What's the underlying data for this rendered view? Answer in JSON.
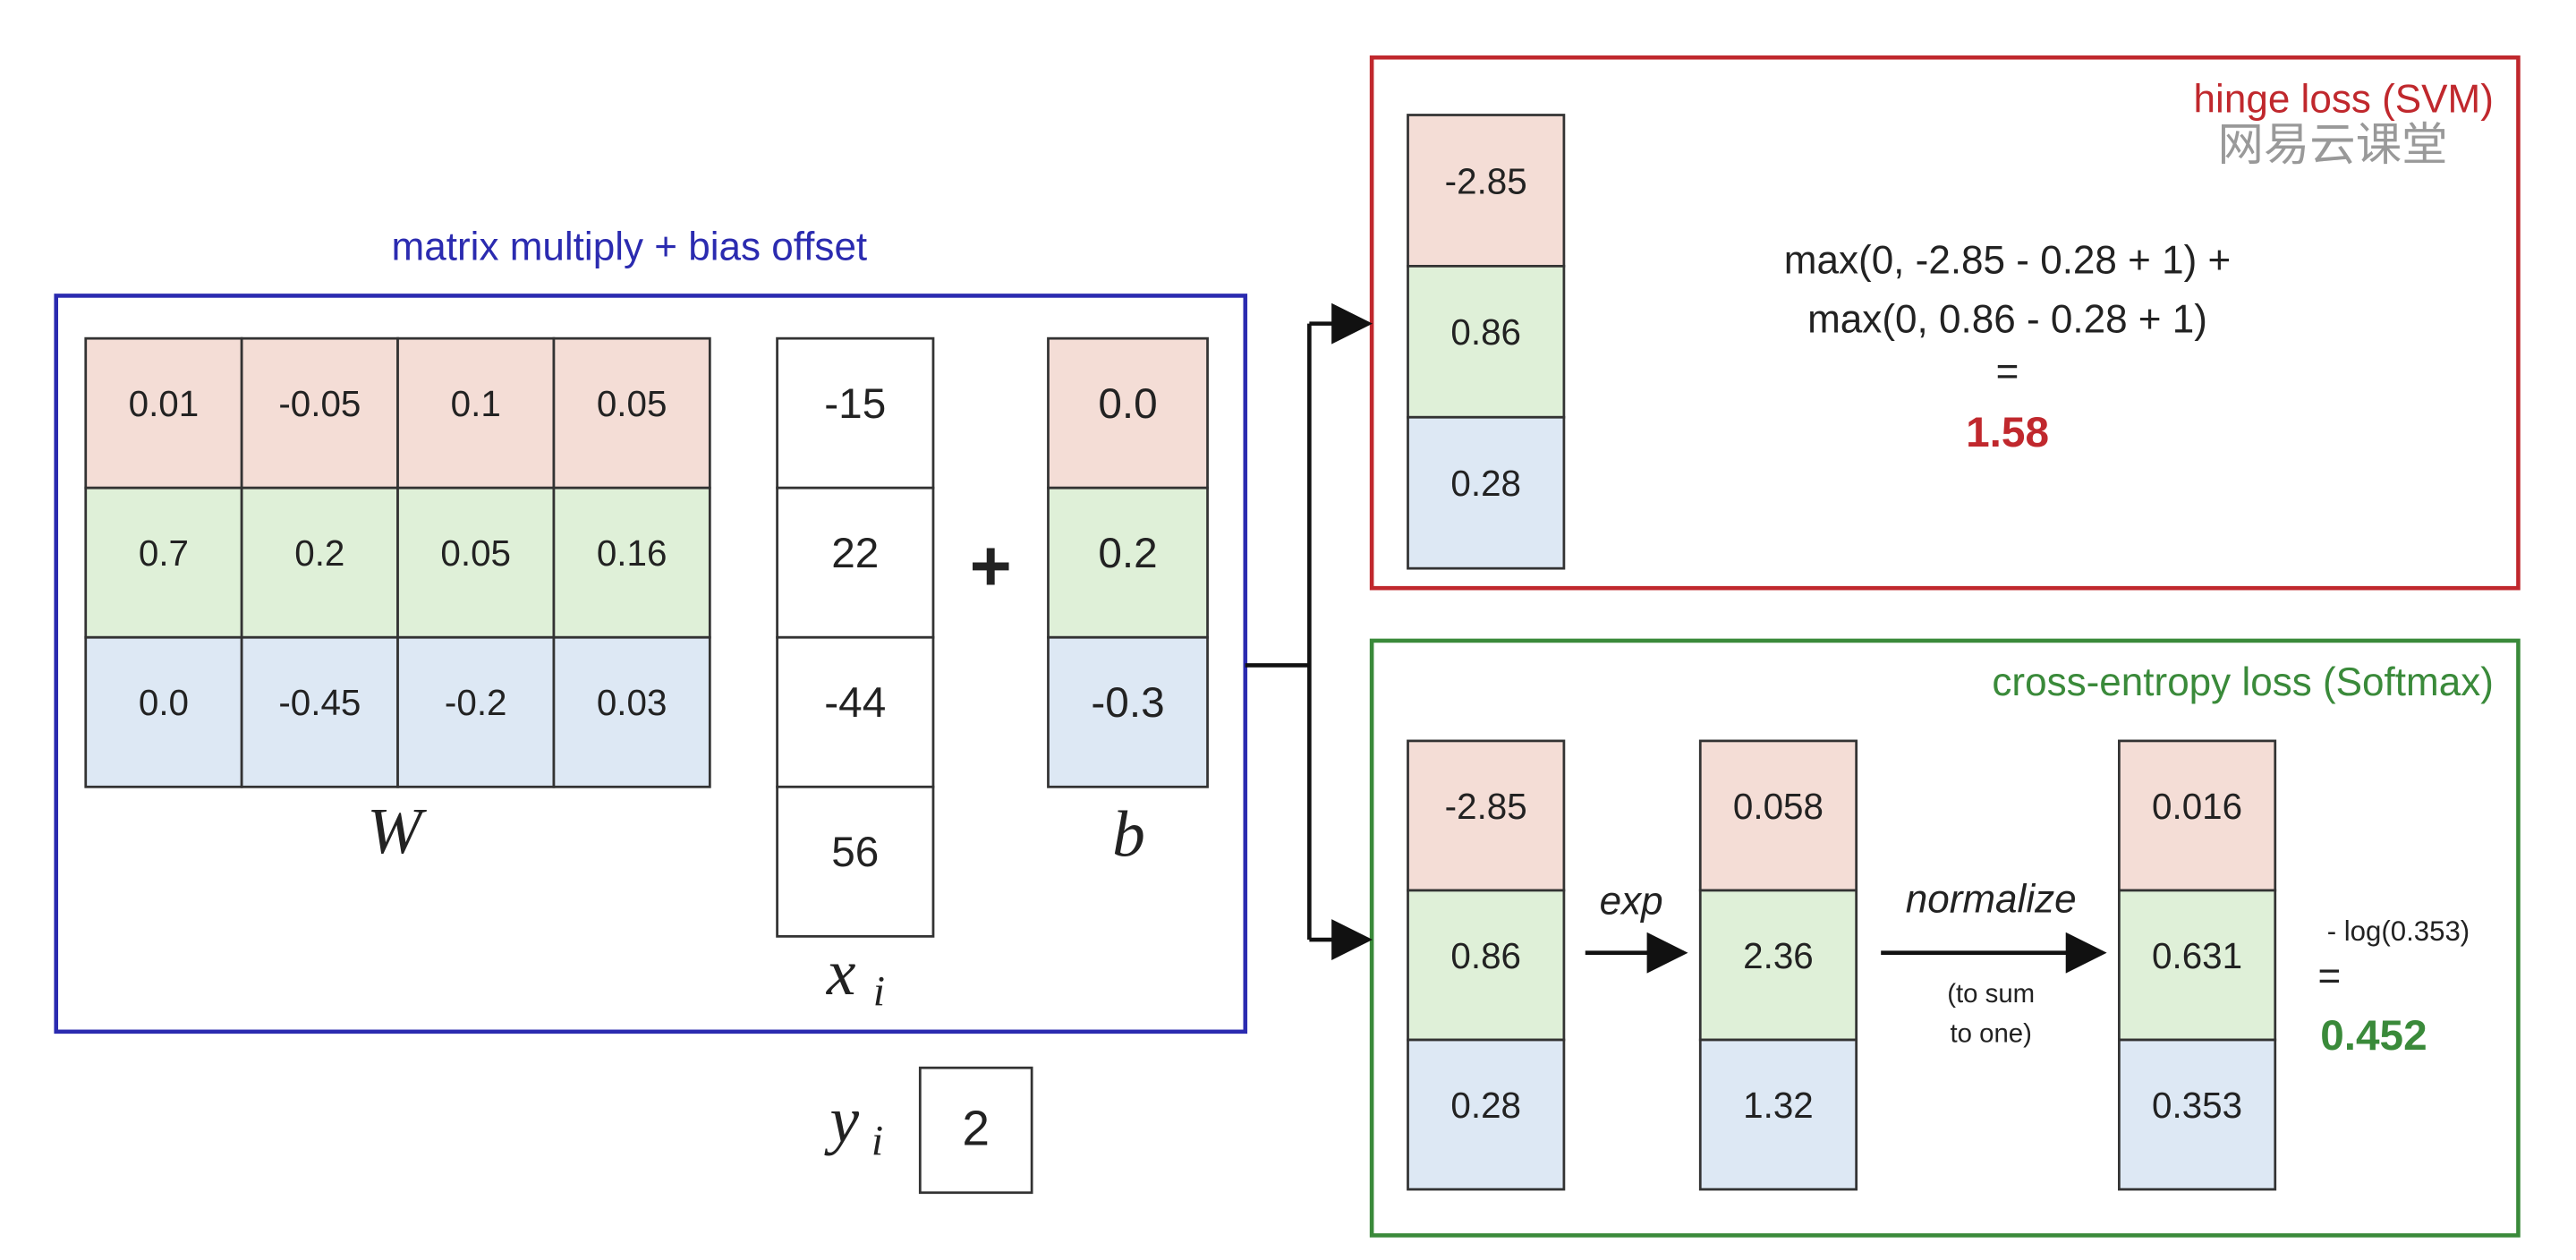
{
  "title": "matrix multiply + bias offset",
  "W": {
    "label": "W",
    "rows": [
      [
        "0.01",
        "-0.05",
        "0.1",
        "0.05"
      ],
      [
        "0.7",
        "0.2",
        "0.05",
        "0.16"
      ],
      [
        "0.0",
        "-0.45",
        "-0.2",
        "0.03"
      ]
    ]
  },
  "x": {
    "label": "x",
    "subscript": "i",
    "values": [
      "-15",
      "22",
      "-44",
      "56"
    ]
  },
  "plus": "+",
  "b": {
    "label": "b",
    "values": [
      "0.0",
      "0.2",
      "-0.3"
    ]
  },
  "y": {
    "label": "y",
    "subscript": "i",
    "value": "2"
  },
  "hinge": {
    "title": "hinge loss (SVM)",
    "scores": [
      "-2.85",
      "0.86",
      "0.28"
    ],
    "formula": [
      "max(0, -2.85 - 0.28 + 1) +",
      "max(0, 0.86 - 0.28 + 1)",
      "="
    ],
    "result": "1.58"
  },
  "softmax": {
    "title": "cross-entropy loss (Softmax)",
    "scores": [
      "-2.85",
      "0.86",
      "0.28"
    ],
    "exp_label": "exp",
    "exp": [
      "0.058",
      "2.36",
      "1.32"
    ],
    "normalize_label": "normalize",
    "normalize_note": [
      "(to sum",
      "to one)"
    ],
    "probs": [
      "0.016",
      "0.631",
      "0.353"
    ],
    "formula": "- log(0.353)",
    "equals": "=",
    "result": "0.452"
  },
  "watermark": "网易云课堂"
}
